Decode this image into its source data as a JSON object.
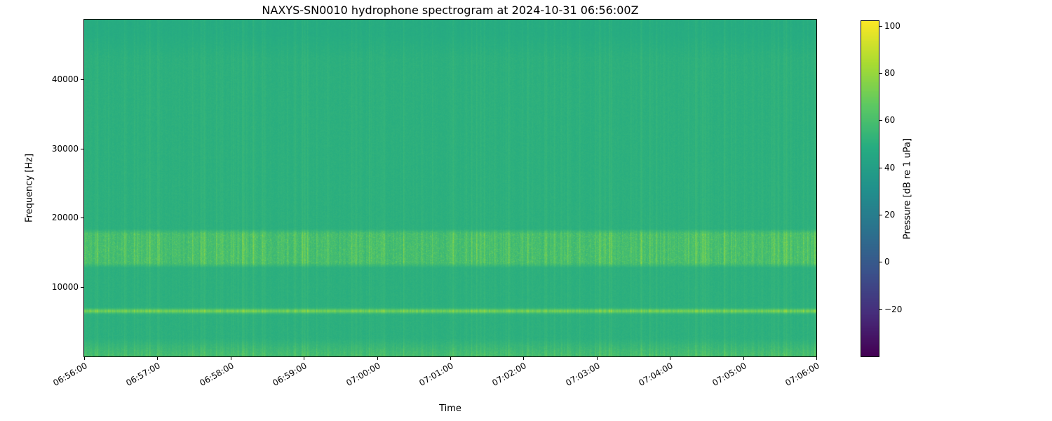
{
  "chart_data": {
    "type": "heatmap",
    "subtype": "spectrogram",
    "title": "NAXYS-SN0010 hydrophone spectrogram at 2024-10-31 06:56:00Z",
    "xlabel": "Time",
    "ylabel": "Frequency [Hz]",
    "x_range_minutes": [
      0,
      10
    ],
    "y_range_hz": [
      0,
      48600
    ],
    "grid": false,
    "x_ticks": [
      {
        "minute": 0,
        "label": "06:56:00"
      },
      {
        "minute": 1,
        "label": "06:57:00"
      },
      {
        "minute": 2,
        "label": "06:58:00"
      },
      {
        "minute": 3,
        "label": "06:59:00"
      },
      {
        "minute": 4,
        "label": "07:00:00"
      },
      {
        "minute": 5,
        "label": "07:01:00"
      },
      {
        "minute": 6,
        "label": "07:02:00"
      },
      {
        "minute": 7,
        "label": "07:03:00"
      },
      {
        "minute": 8,
        "label": "07:04:00"
      },
      {
        "minute": 9,
        "label": "07:05:00"
      },
      {
        "minute": 10,
        "label": "07:06:00"
      }
    ],
    "y_ticks": [
      {
        "hz": 10000,
        "label": "10000"
      },
      {
        "hz": 20000,
        "label": "20000"
      },
      {
        "hz": 30000,
        "label": "30000"
      },
      {
        "hz": 40000,
        "label": "40000"
      }
    ],
    "colorbar": {
      "label": "Pressure [dB re 1 uPa]",
      "position": "right",
      "vmin": -40,
      "vmax": 102,
      "ticks": [
        {
          "db": 100,
          "label": "100"
        },
        {
          "db": 80,
          "label": "80"
        },
        {
          "db": 60,
          "label": "60"
        },
        {
          "db": 40,
          "label": "40"
        },
        {
          "db": 20,
          "label": "20"
        },
        {
          "db": 0,
          "label": "0"
        },
        {
          "db": -20,
          "label": "−20"
        }
      ],
      "colormap": "viridis",
      "colormap_stops": [
        "#440154",
        "#472d7b",
        "#3b528b",
        "#2c728e",
        "#21918c",
        "#27ad81",
        "#5ec962",
        "#aadc32",
        "#fde725"
      ]
    },
    "content": {
      "background_db": 50,
      "high_freq_shade": {
        "above_hz": 43000,
        "db_drop": 2.6
      },
      "features": [
        {
          "name": "tonal-band",
          "center_hz": 6550,
          "bandwidth_hz": 600,
          "typical_db": 72,
          "peak_db": 82,
          "description": "bright narrow intermittent horizontal line near 6.5 kHz"
        },
        {
          "name": "mid-frequency-band",
          "from_hz": 13000,
          "to_hz": 18000,
          "typical_db": 58,
          "peak_db": 75,
          "description": "textured band with dense vertical striations"
        },
        {
          "name": "low-frequency-band",
          "from_hz": 0,
          "to_hz": 2600,
          "typical_db": 58,
          "peak_db": 68,
          "description": "brighter speckled band along the bottom edge"
        },
        {
          "name": "broadband-clicks",
          "typical_db_boost": 4,
          "description": "faint full-height vertical striations repeating through the whole record"
        }
      ]
    }
  }
}
